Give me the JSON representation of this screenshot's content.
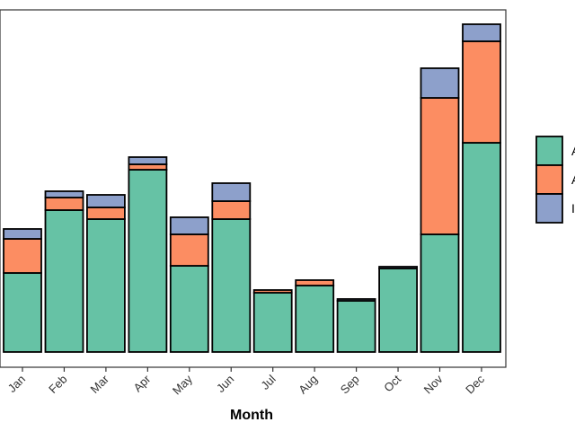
{
  "chart_data": {
    "type": "bar",
    "stacked": true,
    "xlabel": "Month",
    "categories": [
      "Jan",
      "Feb",
      "Mar",
      "Apr",
      "May",
      "Jun",
      "Jul",
      "Aug",
      "Sep",
      "Oct",
      "Nov",
      "Dec"
    ],
    "series": [
      {
        "name": "A",
        "color": "#66c2a5",
        "values": [
          88,
          158,
          148,
          203,
          96,
          148,
          66,
          74,
          57,
          93,
          131,
          233
        ]
      },
      {
        "name": "A",
        "color": "#fc8d62",
        "values": [
          38,
          14,
          13,
          6,
          35,
          20,
          3,
          6,
          0,
          0,
          152,
          113
        ]
      },
      {
        "name": "",
        "color": "#8da0cb",
        "values": [
          11,
          7,
          14,
          8,
          19,
          20,
          0,
          0,
          2,
          2,
          33,
          19
        ]
      }
    ],
    "ylim": [
      0,
      380
    ],
    "legend": "right",
    "grid": false,
    "legend_labels": [
      "A",
      "A",
      "I"
    ]
  }
}
